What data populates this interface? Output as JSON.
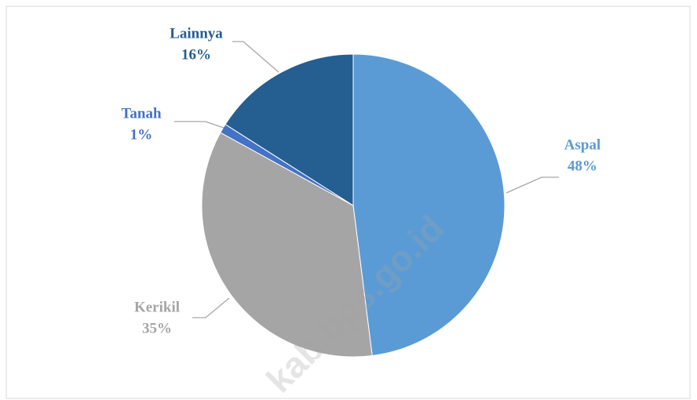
{
  "chart_data": {
    "type": "pie",
    "categories": [
      "Aspal",
      "Kerikil",
      "Tanah",
      "Lainnya"
    ],
    "values": [
      48,
      35,
      1,
      16
    ],
    "value_labels": [
      "48%",
      "35%",
      "1%",
      "16%"
    ],
    "colors": [
      "#5b9bd5",
      "#a5a5a5",
      "#4472c4",
      "#255e91"
    ],
    "watermark": "kab.bps.go.id"
  }
}
